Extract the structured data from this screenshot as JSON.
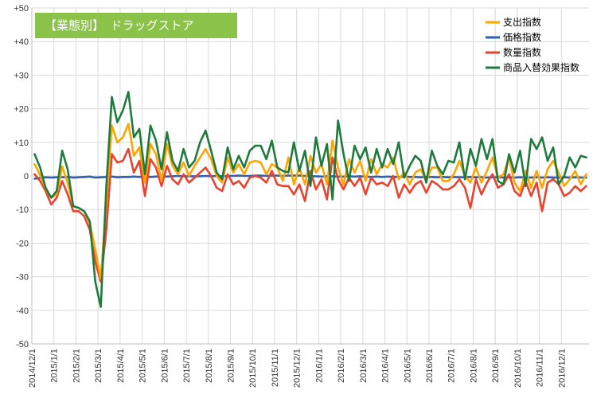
{
  "chart_data": {
    "type": "line",
    "title": "【業態別】　ドラッグストア",
    "xlabel": "",
    "ylabel": "",
    "ylim": [
      -50,
      50
    ],
    "y_ticks": [
      "+50",
      "+40",
      "+30",
      "+20",
      "+10",
      "0",
      "-10",
      "-20",
      "-30",
      "-40",
      "-50"
    ],
    "x_ticks": [
      "2014/12/1",
      "2015/1/1",
      "2015/2/1",
      "2015/3/1",
      "2015/4/1",
      "2015/5/1",
      "2015/6/1",
      "2015/7/1",
      "2015/8/1",
      "2015/9/1",
      "2015/10/1",
      "2015/11/1",
      "2015/12/1",
      "2016/1/1",
      "2016/2/1",
      "2016/3/1",
      "2016/4/1",
      "2016/5/1",
      "2016/6/1",
      "2016/7/1",
      "2016/8/1",
      "2016/9/1",
      "2016/10/1",
      "2016/11/1",
      "2016/12/1"
    ],
    "grid": true,
    "legend_position": "top-right",
    "series": [
      {
        "name": "支出指数",
        "color": "#ffa500",
        "values": [
          3.5,
          0.3,
          -3.8,
          -6.5,
          -5.5,
          2.8,
          -2.0,
          -9.0,
          -9.5,
          -10.5,
          -14.0,
          -22.0,
          -30.5,
          -8.0,
          15.0,
          10.0,
          11.5,
          15.5,
          6.0,
          8.5,
          -2.0,
          9.5,
          6.5,
          -1.5,
          9.5,
          3.0,
          0.5,
          4.0,
          0.0,
          3.0,
          5.5,
          8.0,
          5.0,
          0.0,
          -2.0,
          5.5,
          1.0,
          3.5,
          0.5,
          4.0,
          4.5,
          4.0,
          0.5,
          3.5,
          2.5,
          -1.5,
          5.5,
          -2.5,
          2.5,
          -2.5,
          6.0,
          1.0,
          3.5,
          -2.5,
          10.5,
          2.5,
          -2.5,
          5.0,
          1.0,
          4.5,
          -1.5,
          5.0,
          0.5,
          3.5,
          2.5,
          5.5,
          -1.0,
          1.0,
          -2.5,
          1.0,
          2.0,
          -1.5,
          2.5,
          2.5,
          -1.5,
          -1.5,
          0.5,
          4.5,
          0.0,
          -2.0,
          2.5,
          -2.0,
          1.5,
          5.5,
          -0.5,
          0.5,
          5.5,
          -2.0,
          -4.5,
          1.5,
          -3.5,
          1.5,
          -3.5,
          2.0,
          4.5,
          1.0,
          -3.0,
          -1.0,
          1.5,
          -2.5,
          0.5
        ]
      },
      {
        "name": "価格指数",
        "color": "#3060b0",
        "values": [
          -0.8,
          -0.6,
          -0.4,
          -0.5,
          -0.4,
          -0.4,
          -0.3,
          -0.5,
          -0.4,
          -0.3,
          -0.2,
          -0.5,
          -0.4,
          -0.3,
          -0.2,
          -0.4,
          -0.3,
          -0.3,
          -0.2,
          -0.3,
          -0.2,
          -0.3,
          -0.2,
          -0.1,
          -0.2,
          -0.1,
          0.0,
          -0.1,
          -0.1,
          -0.1,
          -0.1,
          0.0,
          -0.1,
          0.0,
          -0.1,
          0.0,
          0.0,
          0.1,
          0.0,
          0.0,
          0.1,
          0.1,
          0.0,
          0.1,
          0.1,
          0.0,
          0.1,
          0.1,
          0.1,
          0.0,
          -0.1,
          -0.1,
          -0.2,
          -0.1,
          -0.1,
          -0.2,
          -0.2,
          -0.1,
          -0.2,
          -0.1,
          -0.2,
          -0.3,
          -0.2,
          -0.3,
          -0.2,
          -0.3,
          -0.3,
          -0.2,
          -0.3,
          -0.3,
          -0.4,
          -0.3,
          -0.3,
          -0.4,
          -0.3,
          -0.4,
          -0.3,
          -0.4,
          -0.4,
          -0.3,
          -0.4,
          -0.4,
          -0.5,
          -0.4,
          -0.4,
          -0.5,
          -0.4,
          -0.5,
          -0.4,
          -0.5,
          -0.5,
          -0.4,
          -0.5,
          -0.4,
          -0.5,
          -0.5,
          -0.4,
          -0.5,
          -0.4,
          -0.5,
          -0.5
        ]
      },
      {
        "name": "数量指数",
        "color": "#e8432f",
        "values": [
          0.5,
          -1.5,
          -4.5,
          -8.5,
          -6.5,
          -1.5,
          -5.5,
          -10.5,
          -10.5,
          -12.0,
          -16.0,
          -25.5,
          -31.5,
          -16.0,
          6.5,
          4.0,
          4.5,
          8.0,
          1.0,
          4.5,
          -6.0,
          5.0,
          2.5,
          -3.0,
          3.0,
          -1.0,
          -2.5,
          0.5,
          -2.0,
          -0.5,
          1.0,
          2.5,
          0.0,
          -3.5,
          -4.5,
          0.5,
          -2.5,
          -1.5,
          -3.5,
          -0.5,
          0.0,
          -0.5,
          -2.0,
          1.5,
          -2.5,
          -3.0,
          -3.0,
          -5.5,
          -2.5,
          -7.5,
          1.5,
          -4.0,
          -1.0,
          -7.0,
          5.5,
          -1.0,
          -4.0,
          -0.5,
          -3.0,
          -0.5,
          -5.5,
          -0.5,
          -2.5,
          -2.0,
          -3.0,
          0.0,
          -6.5,
          -2.5,
          -5.0,
          -2.5,
          -1.5,
          -5.0,
          -1.5,
          -2.5,
          -4.0,
          -4.0,
          -3.0,
          -1.0,
          -3.5,
          -9.5,
          -1.0,
          -5.5,
          -2.0,
          0.5,
          -3.5,
          -2.5,
          0.5,
          -4.5,
          -6.0,
          -1.5,
          -6.0,
          -2.0,
          -10.5,
          -2.0,
          -1.0,
          -2.5,
          -6.0,
          -5.0,
          -3.0,
          -4.5,
          -3.0
        ]
      },
      {
        "name": "商品入替効果指数",
        "color": "#1f7a3e",
        "values": [
          6.5,
          2.5,
          -3.5,
          -6.5,
          -4.5,
          7.5,
          2.0,
          -9.0,
          -9.5,
          -10.5,
          -13.5,
          -31.5,
          -39.0,
          -3.0,
          23.5,
          16.0,
          19.5,
          25.0,
          11.5,
          14.0,
          0.5,
          15.0,
          10.5,
          2.0,
          13.0,
          4.5,
          1.5,
          8.0,
          2.5,
          4.5,
          10.0,
          13.5,
          7.5,
          1.0,
          -1.0,
          8.5,
          2.0,
          6.0,
          2.5,
          7.5,
          9.0,
          9.0,
          5.0,
          10.5,
          2.5,
          1.5,
          1.0,
          10.0,
          1.5,
          7.5,
          -3.0,
          11.5,
          3.0,
          9.5,
          -7.0,
          16.5,
          6.5,
          -1.5,
          9.0,
          5.0,
          8.5,
          1.0,
          8.0,
          2.5,
          8.0,
          3.5,
          10.0,
          -0.5,
          3.0,
          6.0,
          4.5,
          -2.0,
          7.5,
          3.0,
          0.5,
          4.5,
          4.0,
          10.0,
          -1.0,
          8.0,
          3.0,
          11.0,
          5.0,
          11.0,
          -1.5,
          -2.5,
          6.5,
          1.0,
          7.5,
          -3.0,
          11.0,
          8.0,
          11.5,
          4.5,
          8.5,
          -2.5,
          0.0,
          5.5,
          2.5,
          6.0,
          5.5
        ]
      }
    ]
  }
}
